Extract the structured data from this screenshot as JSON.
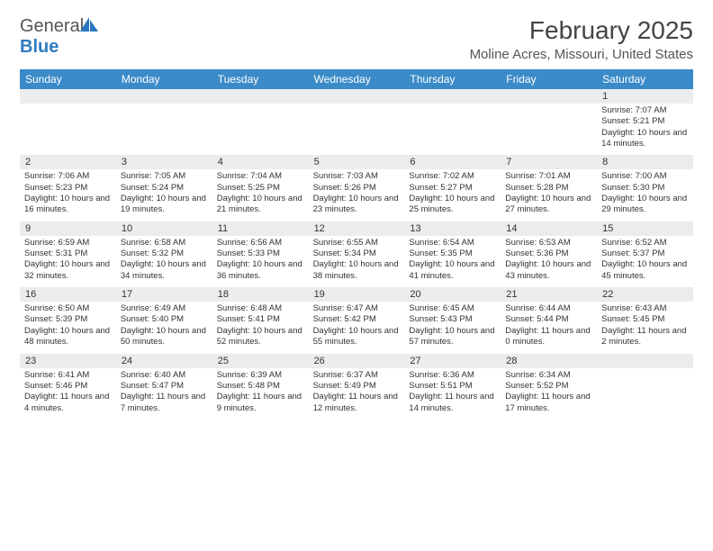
{
  "logo": {
    "text1": "General",
    "text2": "Blue",
    "icon_color": "#2b77bd"
  },
  "header": {
    "month_title": "February 2025",
    "location": "Moline Acres, Missouri, United States"
  },
  "colors": {
    "header_bg": "#3b8bc9",
    "daynum_bg": "#ececec",
    "text": "#333333",
    "title": "#444444"
  },
  "day_headers": [
    "Sunday",
    "Monday",
    "Tuesday",
    "Wednesday",
    "Thursday",
    "Friday",
    "Saturday"
  ],
  "weeks": [
    [
      {
        "n": "",
        "sr": "",
        "ss": "",
        "dl": ""
      },
      {
        "n": "",
        "sr": "",
        "ss": "",
        "dl": ""
      },
      {
        "n": "",
        "sr": "",
        "ss": "",
        "dl": ""
      },
      {
        "n": "",
        "sr": "",
        "ss": "",
        "dl": ""
      },
      {
        "n": "",
        "sr": "",
        "ss": "",
        "dl": ""
      },
      {
        "n": "",
        "sr": "",
        "ss": "",
        "dl": ""
      },
      {
        "n": "1",
        "sr": "Sunrise: 7:07 AM",
        "ss": "Sunset: 5:21 PM",
        "dl": "Daylight: 10 hours and 14 minutes."
      }
    ],
    [
      {
        "n": "2",
        "sr": "Sunrise: 7:06 AM",
        "ss": "Sunset: 5:23 PM",
        "dl": "Daylight: 10 hours and 16 minutes."
      },
      {
        "n": "3",
        "sr": "Sunrise: 7:05 AM",
        "ss": "Sunset: 5:24 PM",
        "dl": "Daylight: 10 hours and 19 minutes."
      },
      {
        "n": "4",
        "sr": "Sunrise: 7:04 AM",
        "ss": "Sunset: 5:25 PM",
        "dl": "Daylight: 10 hours and 21 minutes."
      },
      {
        "n": "5",
        "sr": "Sunrise: 7:03 AM",
        "ss": "Sunset: 5:26 PM",
        "dl": "Daylight: 10 hours and 23 minutes."
      },
      {
        "n": "6",
        "sr": "Sunrise: 7:02 AM",
        "ss": "Sunset: 5:27 PM",
        "dl": "Daylight: 10 hours and 25 minutes."
      },
      {
        "n": "7",
        "sr": "Sunrise: 7:01 AM",
        "ss": "Sunset: 5:28 PM",
        "dl": "Daylight: 10 hours and 27 minutes."
      },
      {
        "n": "8",
        "sr": "Sunrise: 7:00 AM",
        "ss": "Sunset: 5:30 PM",
        "dl": "Daylight: 10 hours and 29 minutes."
      }
    ],
    [
      {
        "n": "9",
        "sr": "Sunrise: 6:59 AM",
        "ss": "Sunset: 5:31 PM",
        "dl": "Daylight: 10 hours and 32 minutes."
      },
      {
        "n": "10",
        "sr": "Sunrise: 6:58 AM",
        "ss": "Sunset: 5:32 PM",
        "dl": "Daylight: 10 hours and 34 minutes."
      },
      {
        "n": "11",
        "sr": "Sunrise: 6:56 AM",
        "ss": "Sunset: 5:33 PM",
        "dl": "Daylight: 10 hours and 36 minutes."
      },
      {
        "n": "12",
        "sr": "Sunrise: 6:55 AM",
        "ss": "Sunset: 5:34 PM",
        "dl": "Daylight: 10 hours and 38 minutes."
      },
      {
        "n": "13",
        "sr": "Sunrise: 6:54 AM",
        "ss": "Sunset: 5:35 PM",
        "dl": "Daylight: 10 hours and 41 minutes."
      },
      {
        "n": "14",
        "sr": "Sunrise: 6:53 AM",
        "ss": "Sunset: 5:36 PM",
        "dl": "Daylight: 10 hours and 43 minutes."
      },
      {
        "n": "15",
        "sr": "Sunrise: 6:52 AM",
        "ss": "Sunset: 5:37 PM",
        "dl": "Daylight: 10 hours and 45 minutes."
      }
    ],
    [
      {
        "n": "16",
        "sr": "Sunrise: 6:50 AM",
        "ss": "Sunset: 5:39 PM",
        "dl": "Daylight: 10 hours and 48 minutes."
      },
      {
        "n": "17",
        "sr": "Sunrise: 6:49 AM",
        "ss": "Sunset: 5:40 PM",
        "dl": "Daylight: 10 hours and 50 minutes."
      },
      {
        "n": "18",
        "sr": "Sunrise: 6:48 AM",
        "ss": "Sunset: 5:41 PM",
        "dl": "Daylight: 10 hours and 52 minutes."
      },
      {
        "n": "19",
        "sr": "Sunrise: 6:47 AM",
        "ss": "Sunset: 5:42 PM",
        "dl": "Daylight: 10 hours and 55 minutes."
      },
      {
        "n": "20",
        "sr": "Sunrise: 6:45 AM",
        "ss": "Sunset: 5:43 PM",
        "dl": "Daylight: 10 hours and 57 minutes."
      },
      {
        "n": "21",
        "sr": "Sunrise: 6:44 AM",
        "ss": "Sunset: 5:44 PM",
        "dl": "Daylight: 11 hours and 0 minutes."
      },
      {
        "n": "22",
        "sr": "Sunrise: 6:43 AM",
        "ss": "Sunset: 5:45 PM",
        "dl": "Daylight: 11 hours and 2 minutes."
      }
    ],
    [
      {
        "n": "23",
        "sr": "Sunrise: 6:41 AM",
        "ss": "Sunset: 5:46 PM",
        "dl": "Daylight: 11 hours and 4 minutes."
      },
      {
        "n": "24",
        "sr": "Sunrise: 6:40 AM",
        "ss": "Sunset: 5:47 PM",
        "dl": "Daylight: 11 hours and 7 minutes."
      },
      {
        "n": "25",
        "sr": "Sunrise: 6:39 AM",
        "ss": "Sunset: 5:48 PM",
        "dl": "Daylight: 11 hours and 9 minutes."
      },
      {
        "n": "26",
        "sr": "Sunrise: 6:37 AM",
        "ss": "Sunset: 5:49 PM",
        "dl": "Daylight: 11 hours and 12 minutes."
      },
      {
        "n": "27",
        "sr": "Sunrise: 6:36 AM",
        "ss": "Sunset: 5:51 PM",
        "dl": "Daylight: 11 hours and 14 minutes."
      },
      {
        "n": "28",
        "sr": "Sunrise: 6:34 AM",
        "ss": "Sunset: 5:52 PM",
        "dl": "Daylight: 11 hours and 17 minutes."
      },
      {
        "n": "",
        "sr": "",
        "ss": "",
        "dl": ""
      }
    ]
  ]
}
